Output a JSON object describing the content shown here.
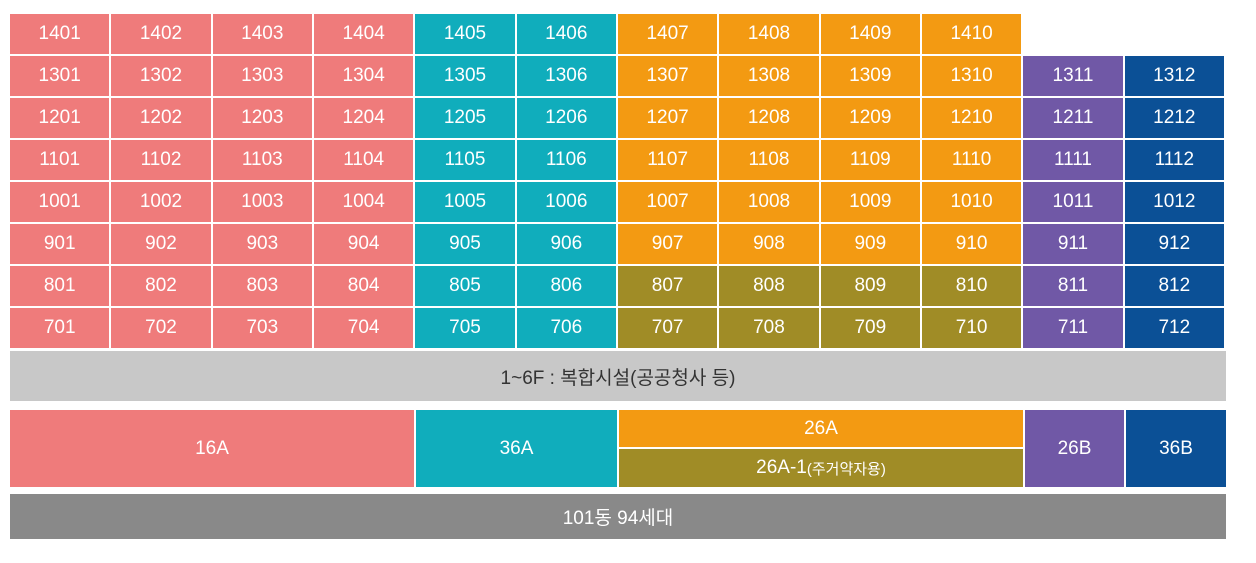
{
  "colors": {
    "type_16A": "#ef7b7b",
    "type_36A": "#10adbc",
    "type_26A": "#f39a12",
    "type_26A_1": "#a08c26",
    "type_26B": "#7058a6",
    "type_36B": "#0b5096"
  },
  "floors": [
    {
      "units": [
        {
          "label": "1401",
          "type": "type_16A"
        },
        {
          "label": "1402",
          "type": "type_16A"
        },
        {
          "label": "1403",
          "type": "type_16A"
        },
        {
          "label": "1404",
          "type": "type_16A"
        },
        {
          "label": "1405",
          "type": "type_36A"
        },
        {
          "label": "1406",
          "type": "type_36A"
        },
        {
          "label": "1407",
          "type": "type_26A"
        },
        {
          "label": "1408",
          "type": "type_26A"
        },
        {
          "label": "1409",
          "type": "type_26A"
        },
        {
          "label": "1410",
          "type": "type_26A"
        }
      ]
    },
    {
      "units": [
        {
          "label": "1301",
          "type": "type_16A"
        },
        {
          "label": "1302",
          "type": "type_16A"
        },
        {
          "label": "1303",
          "type": "type_16A"
        },
        {
          "label": "1304",
          "type": "type_16A"
        },
        {
          "label": "1305",
          "type": "type_36A"
        },
        {
          "label": "1306",
          "type": "type_36A"
        },
        {
          "label": "1307",
          "type": "type_26A"
        },
        {
          "label": "1308",
          "type": "type_26A"
        },
        {
          "label": "1309",
          "type": "type_26A"
        },
        {
          "label": "1310",
          "type": "type_26A"
        },
        {
          "label": "1311",
          "type": "type_26B"
        },
        {
          "label": "1312",
          "type": "type_36B"
        }
      ]
    },
    {
      "units": [
        {
          "label": "1201",
          "type": "type_16A"
        },
        {
          "label": "1202",
          "type": "type_16A"
        },
        {
          "label": "1203",
          "type": "type_16A"
        },
        {
          "label": "1204",
          "type": "type_16A"
        },
        {
          "label": "1205",
          "type": "type_36A"
        },
        {
          "label": "1206",
          "type": "type_36A"
        },
        {
          "label": "1207",
          "type": "type_26A"
        },
        {
          "label": "1208",
          "type": "type_26A"
        },
        {
          "label": "1209",
          "type": "type_26A"
        },
        {
          "label": "1210",
          "type": "type_26A"
        },
        {
          "label": "1211",
          "type": "type_26B"
        },
        {
          "label": "1212",
          "type": "type_36B"
        }
      ]
    },
    {
      "units": [
        {
          "label": "1101",
          "type": "type_16A"
        },
        {
          "label": "1102",
          "type": "type_16A"
        },
        {
          "label": "1103",
          "type": "type_16A"
        },
        {
          "label": "1104",
          "type": "type_16A"
        },
        {
          "label": "1105",
          "type": "type_36A"
        },
        {
          "label": "1106",
          "type": "type_36A"
        },
        {
          "label": "1107",
          "type": "type_26A"
        },
        {
          "label": "1108",
          "type": "type_26A"
        },
        {
          "label": "1109",
          "type": "type_26A"
        },
        {
          "label": "1110",
          "type": "type_26A"
        },
        {
          "label": "1111",
          "type": "type_26B"
        },
        {
          "label": "1112",
          "type": "type_36B"
        }
      ]
    },
    {
      "units": [
        {
          "label": "1001",
          "type": "type_16A"
        },
        {
          "label": "1002",
          "type": "type_16A"
        },
        {
          "label": "1003",
          "type": "type_16A"
        },
        {
          "label": "1004",
          "type": "type_16A"
        },
        {
          "label": "1005",
          "type": "type_36A"
        },
        {
          "label": "1006",
          "type": "type_36A"
        },
        {
          "label": "1007",
          "type": "type_26A"
        },
        {
          "label": "1008",
          "type": "type_26A"
        },
        {
          "label": "1009",
          "type": "type_26A"
        },
        {
          "label": "1010",
          "type": "type_26A"
        },
        {
          "label": "1011",
          "type": "type_26B"
        },
        {
          "label": "1012",
          "type": "type_36B"
        }
      ]
    },
    {
      "units": [
        {
          "label": "901",
          "type": "type_16A"
        },
        {
          "label": "902",
          "type": "type_16A"
        },
        {
          "label": "903",
          "type": "type_16A"
        },
        {
          "label": "904",
          "type": "type_16A"
        },
        {
          "label": "905",
          "type": "type_36A"
        },
        {
          "label": "906",
          "type": "type_36A"
        },
        {
          "label": "907",
          "type": "type_26A"
        },
        {
          "label": "908",
          "type": "type_26A"
        },
        {
          "label": "909",
          "type": "type_26A"
        },
        {
          "label": "910",
          "type": "type_26A"
        },
        {
          "label": "911",
          "type": "type_26B"
        },
        {
          "label": "912",
          "type": "type_36B"
        }
      ]
    },
    {
      "units": [
        {
          "label": "801",
          "type": "type_16A"
        },
        {
          "label": "802",
          "type": "type_16A"
        },
        {
          "label": "803",
          "type": "type_16A"
        },
        {
          "label": "804",
          "type": "type_16A"
        },
        {
          "label": "805",
          "type": "type_36A"
        },
        {
          "label": "806",
          "type": "type_36A"
        },
        {
          "label": "807",
          "type": "type_26A_1"
        },
        {
          "label": "808",
          "type": "type_26A_1"
        },
        {
          "label": "809",
          "type": "type_26A_1"
        },
        {
          "label": "810",
          "type": "type_26A_1"
        },
        {
          "label": "811",
          "type": "type_26B"
        },
        {
          "label": "812",
          "type": "type_36B"
        }
      ]
    },
    {
      "units": [
        {
          "label": "701",
          "type": "type_16A"
        },
        {
          "label": "702",
          "type": "type_16A"
        },
        {
          "label": "703",
          "type": "type_16A"
        },
        {
          "label": "704",
          "type": "type_16A"
        },
        {
          "label": "705",
          "type": "type_36A"
        },
        {
          "label": "706",
          "type": "type_36A"
        },
        {
          "label": "707",
          "type": "type_26A_1"
        },
        {
          "label": "708",
          "type": "type_26A_1"
        },
        {
          "label": "709",
          "type": "type_26A_1"
        },
        {
          "label": "710",
          "type": "type_26A_1"
        },
        {
          "label": "711",
          "type": "type_26B"
        },
        {
          "label": "712",
          "type": "type_36B"
        }
      ]
    }
  ],
  "podium_label": "1~6F : 복합시설(공공청사 등)",
  "legend": {
    "t16A": "16A",
    "t36A": "36A",
    "t26A": "26A",
    "t26A_1_main": "26A-1",
    "t26A_1_note": "(주거약자용)",
    "t26B": "26B",
    "t36B": "36B"
  },
  "footer_label": "101동 94세대"
}
